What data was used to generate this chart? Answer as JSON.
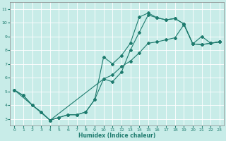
{
  "xlabel": "Humidex (Indice chaleur)",
  "xlim": [
    -0.5,
    23.5
  ],
  "ylim": [
    2.5,
    11.5
  ],
  "xticks": [
    0,
    1,
    2,
    3,
    4,
    5,
    6,
    7,
    8,
    9,
    10,
    11,
    12,
    13,
    14,
    15,
    16,
    17,
    18,
    19,
    20,
    21,
    22,
    23
  ],
  "yticks": [
    3,
    4,
    5,
    6,
    7,
    8,
    9,
    10,
    11
  ],
  "bg_color": "#c8ece8",
  "line_color": "#1e7b6e",
  "grid_color": "#ffffff",
  "line1_x": [
    0,
    1,
    2,
    3,
    4,
    5,
    6,
    7,
    8,
    9,
    10,
    11,
    12,
    13,
    14,
    15,
    16,
    17,
    18,
    19,
    20,
    21,
    22,
    23
  ],
  "line1_y": [
    5.1,
    4.7,
    4.0,
    3.5,
    2.9,
    3.1,
    3.3,
    3.3,
    3.5,
    4.4,
    7.5,
    7.0,
    7.6,
    8.5,
    10.4,
    10.7,
    10.35,
    10.2,
    10.3,
    9.9,
    8.45,
    8.4,
    8.5,
    8.6
  ],
  "line2_x": [
    0,
    1,
    2,
    3,
    4,
    5,
    6,
    7,
    8,
    9,
    10,
    11,
    12,
    13,
    14,
    15,
    16,
    17,
    18,
    19,
    20,
    21,
    22,
    23
  ],
  "line2_y": [
    5.1,
    4.7,
    4.0,
    3.5,
    2.9,
    3.1,
    3.3,
    3.3,
    3.5,
    4.4,
    5.9,
    5.7,
    6.4,
    8.0,
    9.3,
    10.55,
    10.35,
    10.2,
    10.3,
    9.9,
    8.45,
    9.0,
    8.5,
    8.6
  ],
  "line3_x": [
    0,
    4,
    10,
    11,
    12,
    13,
    14,
    15,
    16,
    17,
    18,
    19,
    20,
    21,
    22,
    23
  ],
  "line3_y": [
    5.1,
    2.9,
    5.9,
    6.2,
    6.8,
    7.2,
    7.8,
    8.5,
    8.6,
    8.75,
    8.9,
    9.85,
    8.45,
    8.4,
    8.5,
    8.6
  ]
}
